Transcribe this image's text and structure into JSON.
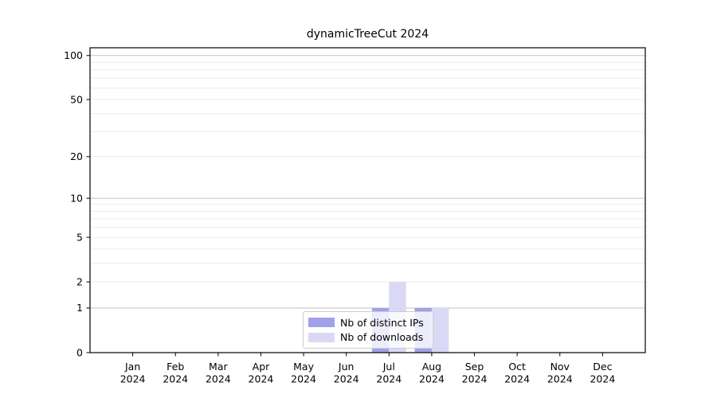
{
  "figure": {
    "title": "dynamicTreeCut 2024",
    "background": "#ffffff"
  },
  "legend": {
    "entries": [
      {
        "label": "Nb of distinct IPs",
        "color": "#a1a1e8"
      },
      {
        "label": "Nb of downloads",
        "color": "#d9d9f6"
      }
    ]
  },
  "chart_data": {
    "type": "bar",
    "title": "dynamicTreeCut 2024",
    "categories": [
      "Jan",
      "Feb",
      "Mar",
      "Apr",
      "May",
      "Jun",
      "Jul",
      "Aug",
      "Sep",
      "Oct",
      "Nov",
      "Dec"
    ],
    "x_sublabel": "2024",
    "series": [
      {
        "name": "Nb of distinct IPs",
        "color": "#a1a1e8",
        "values": [
          0,
          0,
          0,
          0,
          0,
          0,
          1,
          1,
          0,
          0,
          0,
          0
        ]
      },
      {
        "name": "Nb of downloads",
        "color": "#d9d9f6",
        "values": [
          0,
          0,
          0,
          0,
          0,
          0,
          2,
          1,
          0,
          0,
          0,
          0
        ]
      }
    ],
    "yscale": "log1p",
    "yticks": [
      0,
      1,
      2,
      5,
      10,
      20,
      50,
      100
    ],
    "grid_minor": [
      2,
      3,
      4,
      5,
      6,
      7,
      8,
      9,
      20,
      30,
      40,
      50,
      60,
      70,
      80,
      90
    ],
    "grid_major": [
      1,
      10,
      100
    ],
    "ylim": [
      0,
      113
    ],
    "xlabel": "",
    "ylabel": "",
    "grid": true,
    "legend_position": "lower center",
    "colors": {
      "spine": "#000000",
      "grid_major": "#c2c2c2",
      "grid_minor": "#ebebeb",
      "text": "#000000"
    }
  }
}
